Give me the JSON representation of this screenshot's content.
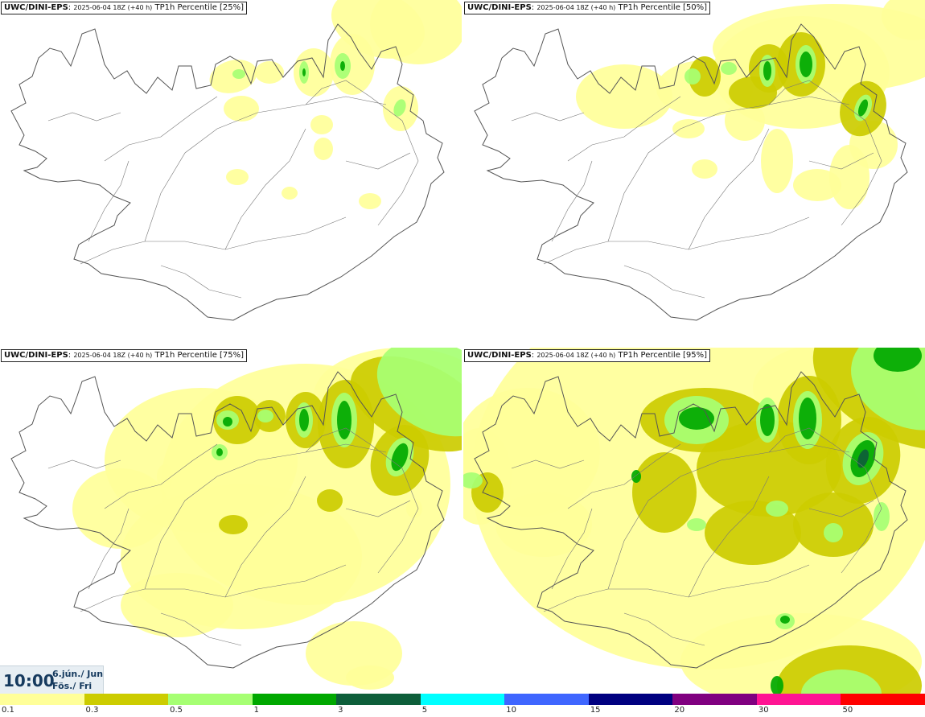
{
  "panels": [
    {
      "source": "UWC/DINI-EPS",
      "run": "2025-06-04 18Z (+40 h)",
      "field": "TP1h Percentile [25%]",
      "percentile": 25,
      "intensity": 0
    },
    {
      "source": "UWC/DINI-EPS",
      "run": "2025-06-04 18Z (+40 h)",
      "field": "TP1h Percentile [50%]",
      "percentile": 50,
      "intensity": 1
    },
    {
      "source": "UWC/DINI-EPS",
      "run": "2025-06-04 18Z (+40 h)",
      "field": "TP1h Percentile [75%]",
      "percentile": 75,
      "intensity": 2
    },
    {
      "source": "UWC/DINI-EPS",
      "run": "2025-06-04 18Z (+40 h)",
      "field": "TP1h Percentile [95%]",
      "percentile": 95,
      "intensity": 3
    }
  ],
  "valid_time": {
    "time": "10:00",
    "date": "6.jún./ Jun",
    "weekday": "Fös./ Fri"
  },
  "legend": {
    "ticks": [
      "0.1",
      "0.3",
      "0.5",
      "1",
      "3",
      "5",
      "10",
      "15",
      "20",
      "30",
      "50"
    ],
    "colors": [
      "#ffff99",
      "#cccc00",
      "#a6ff73",
      "#00a800",
      "#0d5e3a",
      "#00ffff",
      "#3f66ff",
      "#000080",
      "#800080",
      "#ff1493",
      "#ff0000"
    ]
  }
}
